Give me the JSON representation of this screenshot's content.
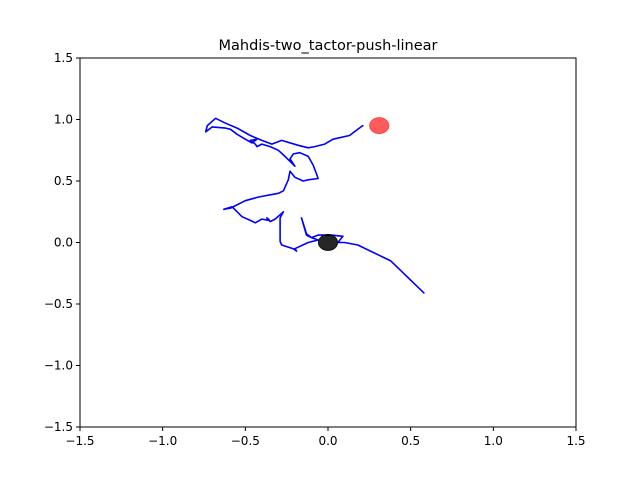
{
  "chart_data": {
    "type": "line",
    "title": "Mahdis-two_tactor-push-linear",
    "xlabel": "",
    "ylabel": "",
    "xlim": [
      -1.5,
      1.5
    ],
    "ylim": [
      -1.5,
      1.5
    ],
    "x_ticks": [
      -1.5,
      -1.0,
      -0.5,
      0.0,
      0.5,
      1.0,
      1.5
    ],
    "y_ticks": [
      -1.5,
      -1.0,
      -0.5,
      0.0,
      0.5,
      1.0,
      1.5
    ],
    "x_tick_labels": [
      "−1.5",
      "−1.0",
      "−0.5",
      "0.0",
      "0.5",
      "1.0",
      "1.5"
    ],
    "y_tick_labels": [
      "−1.5",
      "−1.0",
      "−0.5",
      "0.0",
      "0.5",
      "1.0",
      "1.5"
    ],
    "grid": false,
    "colors": {
      "path": "#0000ff",
      "target": "#ff3333",
      "start": "#000000"
    },
    "series": [
      {
        "color": "#0000ff",
        "points": [
          [
            0.58,
            -0.41
          ],
          [
            0.38,
            -0.15
          ],
          [
            0.18,
            -0.02
          ],
          [
            0.1,
            0.0
          ],
          [
            0.06,
            0.0
          ],
          [
            0.09,
            0.05
          ],
          [
            0.02,
            0.06
          ],
          [
            -0.06,
            0.06
          ],
          [
            -0.1,
            0.04
          ],
          [
            -0.13,
            0.07
          ],
          [
            -0.16,
            0.2
          ],
          [
            -0.13,
            0.06
          ],
          [
            -0.1,
            0.04
          ],
          [
            -0.06,
            0.02
          ],
          [
            -0.12,
            0.0
          ],
          [
            -0.2,
            -0.05
          ],
          [
            -0.19,
            -0.07
          ],
          [
            -0.21,
            -0.05
          ],
          [
            -0.28,
            -0.02
          ],
          [
            -0.29,
            0.01
          ],
          [
            -0.29,
            0.2
          ],
          [
            -0.27,
            0.25
          ],
          [
            -0.32,
            0.19
          ],
          [
            -0.35,
            0.17
          ],
          [
            -0.36,
            0.19
          ],
          [
            -0.37,
            0.2
          ],
          [
            -0.36,
            0.18
          ],
          [
            -0.4,
            0.19
          ],
          [
            -0.44,
            0.16
          ],
          [
            -0.47,
            0.18
          ],
          [
            -0.52,
            0.21
          ],
          [
            -0.58,
            0.29
          ],
          [
            -0.63,
            0.27
          ],
          [
            -0.59,
            0.28
          ],
          [
            -0.5,
            0.34
          ],
          [
            -0.42,
            0.37
          ],
          [
            -0.3,
            0.4
          ],
          [
            -0.27,
            0.42
          ],
          [
            -0.24,
            0.51
          ],
          [
            -0.23,
            0.58
          ],
          [
            -0.2,
            0.53
          ],
          [
            -0.15,
            0.5
          ],
          [
            -0.12,
            0.51
          ],
          [
            -0.06,
            0.52
          ],
          [
            -0.07,
            0.56
          ],
          [
            -0.09,
            0.63
          ],
          [
            -0.12,
            0.7
          ],
          [
            -0.17,
            0.73
          ],
          [
            -0.21,
            0.72
          ],
          [
            -0.23,
            0.68
          ],
          [
            -0.2,
            0.62
          ],
          [
            -0.26,
            0.7
          ],
          [
            -0.3,
            0.75
          ],
          [
            -0.35,
            0.78
          ],
          [
            -0.4,
            0.8
          ],
          [
            -0.43,
            0.78
          ],
          [
            -0.44,
            0.8
          ],
          [
            -0.47,
            0.83
          ],
          [
            -0.43,
            0.84
          ],
          [
            -0.46,
            0.81
          ],
          [
            -0.5,
            0.84
          ],
          [
            -0.55,
            0.88
          ],
          [
            -0.59,
            0.92
          ],
          [
            -0.62,
            0.93
          ],
          [
            -0.7,
            0.94
          ],
          [
            -0.74,
            0.9
          ],
          [
            -0.73,
            0.95
          ],
          [
            -0.68,
            1.01
          ],
          [
            -0.62,
            0.97
          ],
          [
            -0.55,
            0.93
          ],
          [
            -0.47,
            0.87
          ],
          [
            -0.4,
            0.83
          ],
          [
            -0.34,
            0.8
          ],
          [
            -0.28,
            0.83
          ],
          [
            -0.18,
            0.79
          ],
          [
            -0.12,
            0.77
          ],
          [
            -0.08,
            0.78
          ],
          [
            -0.02,
            0.8
          ],
          [
            0.03,
            0.84
          ],
          [
            0.13,
            0.87
          ],
          [
            0.21,
            0.95
          ]
        ]
      }
    ],
    "markers": [
      {
        "name": "target",
        "x": 0.31,
        "y": 0.95,
        "rx": 0.058,
        "ry": 0.065,
        "color": "#ff3333",
        "opacity": 0.8
      },
      {
        "name": "start",
        "x": 0.0,
        "y": 0.0,
        "rx": 0.058,
        "ry": 0.065,
        "color": "#000000",
        "opacity": 0.85
      }
    ]
  }
}
